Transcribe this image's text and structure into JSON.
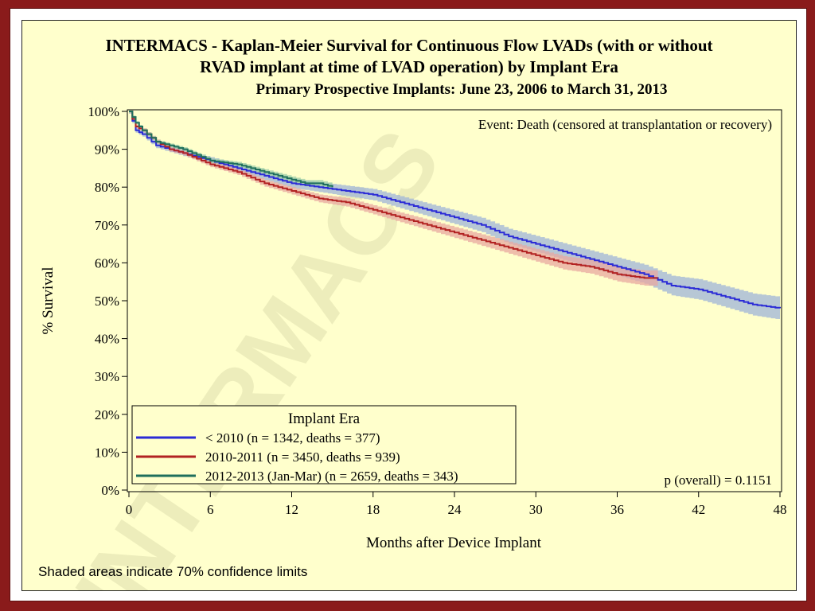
{
  "chart_data": {
    "type": "line",
    "title_line1": "INTERMACS - Kaplan-Meier Survival for Continuous Flow LVADs (with or without",
    "title_line2": "RVAD implant at time of LVAD operation) by Implant Era",
    "subtitle": "Primary Prospective Implants: June 23, 2006 to March 31, 2013",
    "xlabel": "Months after Device Implant",
    "ylabel": "% Survival",
    "xlim": [
      0,
      48
    ],
    "ylim": [
      0,
      100
    ],
    "x_ticks": [
      0,
      6,
      12,
      18,
      24,
      30,
      36,
      42,
      48
    ],
    "y_ticks": [
      0,
      10,
      20,
      30,
      40,
      50,
      60,
      70,
      80,
      90,
      100
    ],
    "y_tick_labels": [
      "0%",
      "10%",
      "20%",
      "30%",
      "40%",
      "50%",
      "60%",
      "70%",
      "80%",
      "90%",
      "100%"
    ],
    "event_note": "Event: Death (censored at transplantation or recovery)",
    "p_value_text": "p (overall) = 0.1151",
    "legend_title": "Implant Era",
    "legend_position": "bottom-left",
    "footnote": "Shaded areas indicate 70% confidence limits",
    "watermark": "INTERMACS",
    "series": [
      {
        "name": "< 2010 (n = 1342, deaths = 377)",
        "color": "#2b2bd6",
        "band_color": "#9fb4d8",
        "x": [
          0,
          0.5,
          1,
          2,
          3,
          4,
          6,
          8,
          10,
          12,
          14,
          16,
          18,
          20,
          22,
          24,
          26,
          28,
          30,
          32,
          34,
          36,
          38,
          40,
          42,
          44,
          46,
          48
        ],
        "y": [
          100,
          95,
          94,
          91,
          90,
          89,
          87,
          85,
          83,
          81,
          80,
          79,
          78,
          76,
          74,
          72,
          70,
          67,
          65,
          63,
          61,
          59,
          57,
          54,
          53,
          51,
          49,
          48
        ],
        "band": 1.5
      },
      {
        "name": "2010-2011 (n = 3450, deaths = 939)",
        "color": "#b22222",
        "band_color": "#e8a8a0",
        "x": [
          0,
          0.5,
          1,
          2,
          3,
          4,
          6,
          8,
          10,
          12,
          14,
          16,
          18,
          20,
          22,
          24,
          26,
          28,
          30,
          32,
          34,
          36,
          38,
          39
        ],
        "y": [
          100,
          96,
          95,
          92,
          90,
          89,
          86,
          84,
          81,
          79,
          77,
          76,
          74,
          72,
          70,
          68,
          66,
          64,
          62,
          60,
          59,
          57,
          56,
          56
        ],
        "band": 1.2
      },
      {
        "name": "2012-2013 (Jan-Mar) (n = 2659, deaths = 343)",
        "color": "#1f6f5c",
        "band_color": "#9fcfa8",
        "x": [
          0,
          0.5,
          1,
          2,
          3,
          4,
          6,
          8,
          10,
          12,
          13,
          14,
          15
        ],
        "y": [
          100,
          97,
          95,
          92,
          91,
          90,
          87,
          86,
          84,
          82,
          81,
          81,
          80
        ],
        "band": 1.0
      }
    ]
  }
}
